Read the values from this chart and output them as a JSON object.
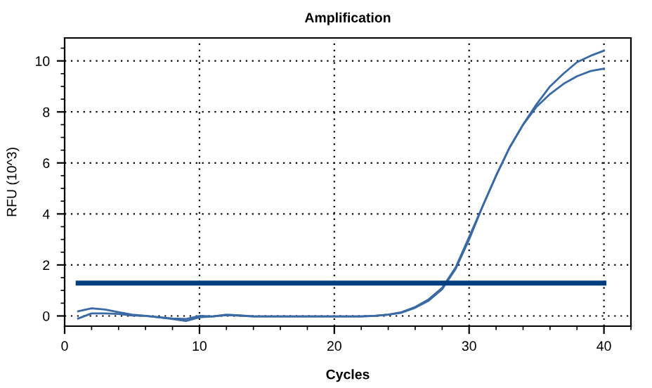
{
  "chart_data": {
    "type": "line",
    "title": "Amplification",
    "xlabel": "Cycles",
    "ylabel": "RFU (10^3)",
    "x": [
      1,
      2,
      3,
      4,
      5,
      6,
      7,
      8,
      9,
      10,
      11,
      12,
      13,
      14,
      15,
      16,
      17,
      18,
      19,
      20,
      21,
      22,
      23,
      24,
      25,
      26,
      27,
      28,
      29,
      30,
      31,
      32,
      33,
      34,
      35,
      36,
      37,
      38,
      39,
      40
    ],
    "series": [
      {
        "color": "#3a6aa3",
        "values": [
          0.18,
          0.3,
          0.25,
          0.15,
          0.05,
          0,
          -0.05,
          -0.12,
          -0.2,
          -0.05,
          -0.02,
          0.05,
          0.02,
          -0.02,
          -0.02,
          -0.02,
          -0.02,
          -0.02,
          -0.02,
          -0.02,
          -0.02,
          -0.02,
          0,
          0.05,
          0.15,
          0.35,
          0.65,
          1.1,
          1.9,
          3.1,
          4.3,
          5.5,
          6.6,
          7.5,
          8.3,
          9.0,
          9.5,
          9.95,
          10.2,
          10.4
        ]
      },
      {
        "color": "#3a6aa3",
        "values": [
          -0.1,
          0.1,
          0.1,
          0.08,
          0.02,
          0,
          -0.05,
          -0.1,
          -0.12,
          0,
          -0.02,
          0.03,
          0.01,
          -0.02,
          -0.02,
          -0.02,
          -0.02,
          -0.02,
          -0.02,
          -0.02,
          -0.02,
          -0.02,
          0,
          0.05,
          0.13,
          0.32,
          0.6,
          1.05,
          1.85,
          3.0,
          4.3,
          5.5,
          6.6,
          7.5,
          8.2,
          8.7,
          9.1,
          9.4,
          9.6,
          9.7
        ]
      },
      {
        "color": "#003f7f",
        "x": [
          1,
          40
        ],
        "values": [
          1.29,
          1.29
        ]
      }
    ],
    "xlim": [
      0,
      42
    ],
    "ylim": [
      -0.4,
      10.9
    ],
    "xticks": [
      0,
      10,
      20,
      30,
      40
    ],
    "yticks": [
      0,
      2,
      4,
      6,
      8,
      10
    ],
    "grid": true,
    "line_style": "solid",
    "marker": "none"
  }
}
